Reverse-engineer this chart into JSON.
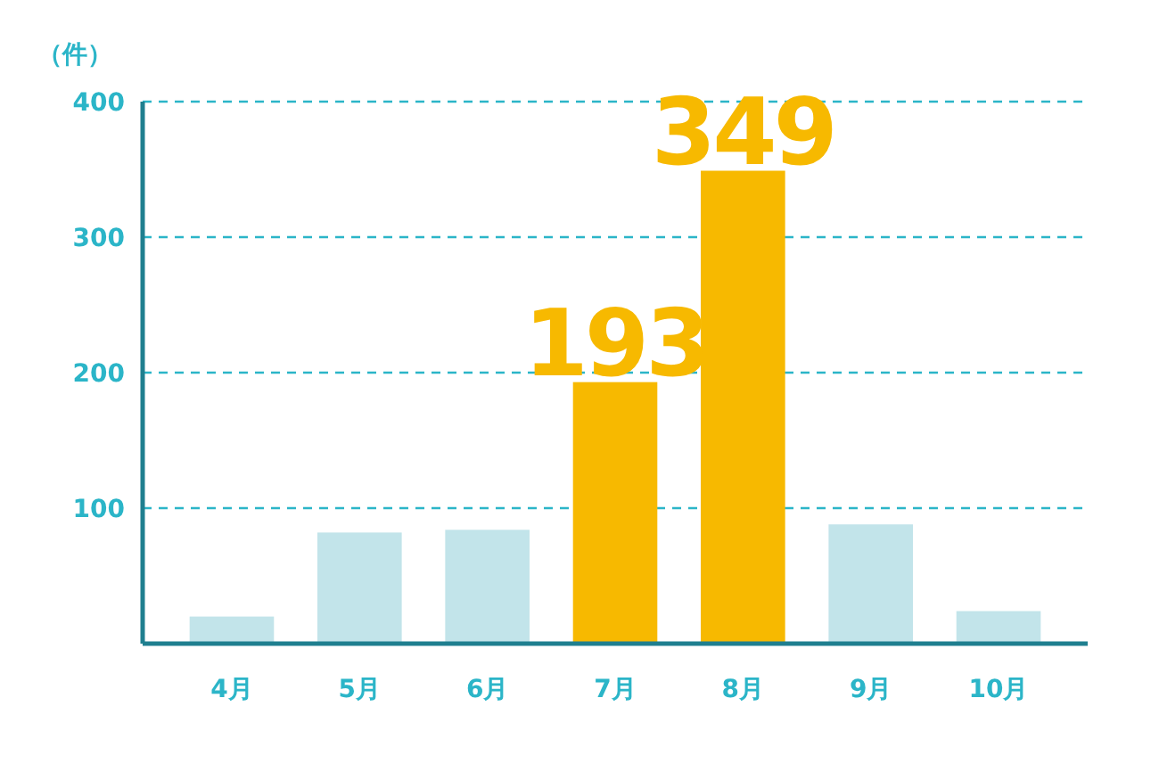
{
  "chart_data": {
    "type": "bar",
    "ylabel": "（件）",
    "categories": [
      "4月",
      "5月",
      "6月",
      "7月",
      "8月",
      "9月",
      "10月"
    ],
    "values": [
      20,
      82,
      84,
      193,
      349,
      88,
      24
    ],
    "colors": [
      "#c2e4ea",
      "#c2e4ea",
      "#c2e4ea",
      "#f7b900",
      "#f7b900",
      "#c2e4ea",
      "#c2e4ea"
    ],
    "value_labels": [
      null,
      null,
      null,
      "193",
      "349",
      null,
      null
    ],
    "ylim": [
      0,
      400
    ],
    "yticks": [
      100,
      200,
      300,
      400
    ],
    "grid": "y"
  }
}
